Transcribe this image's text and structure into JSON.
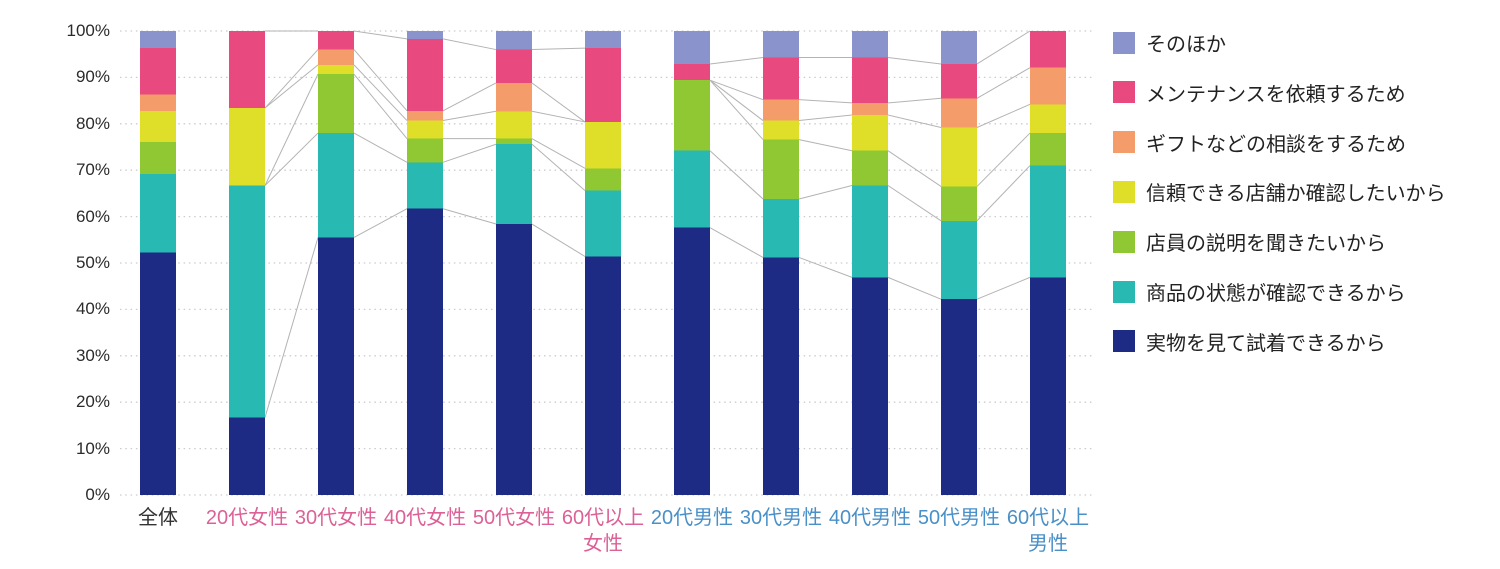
{
  "chart_data": {
    "type": "bar",
    "variant": "100-percent-stacked-columns-with-series-lines",
    "title": "",
    "xlabel": "",
    "ylabel": "",
    "ylim": [
      0,
      100
    ],
    "grid": "dotted-horizontal",
    "legend_position": "right",
    "y_ticks": [
      "0%",
      "10%",
      "20%",
      "30%",
      "40%",
      "50%",
      "60%",
      "70%",
      "80%",
      "90%",
      "100%"
    ],
    "categories": [
      {
        "label": "全体",
        "color": "#333333"
      },
      {
        "label": "20代女性",
        "color": "#dc6196"
      },
      {
        "label": "30代女性",
        "color": "#dc6196"
      },
      {
        "label": "40代女性",
        "color": "#dc6196"
      },
      {
        "label": "50代女性",
        "color": "#dc6196"
      },
      {
        "label": "60代以上\n女性",
        "color": "#dc6196"
      },
      {
        "label": "20代男性",
        "color": "#4a90c8"
      },
      {
        "label": "30代男性",
        "color": "#4a90c8"
      },
      {
        "label": "40代男性",
        "color": "#4a90c8"
      },
      {
        "label": "50代男性",
        "color": "#4a90c8"
      },
      {
        "label": "60代以上\n男性",
        "color": "#4a90c8"
      }
    ],
    "series_bottom_to_top": [
      {
        "name": "実物を見て試着できるから",
        "color": "#1e2b85",
        "values": [
          52.3,
          16.7,
          55.5,
          61.7,
          58.4,
          51.4,
          57.6,
          51.2,
          46.9,
          42.2,
          46.9
        ]
      },
      {
        "name": "商品の状態が確認できるから",
        "color": "#29b9b3",
        "values": [
          16.9,
          50.0,
          22.5,
          10.0,
          17.2,
          14.2,
          16.6,
          12.6,
          19.8,
          16.9,
          24.1
        ]
      },
      {
        "name": "店員の説明を聞きたいから",
        "color": "#8fc832",
        "values": [
          6.9,
          0,
          12.7,
          5.1,
          1.2,
          4.8,
          15.2,
          12.8,
          7.5,
          7.4,
          7.0
        ]
      },
      {
        "name": "信頼できる店舗か確認したいから",
        "color": "#dfdf2a",
        "values": [
          6.7,
          16.7,
          2.0,
          3.9,
          5.9,
          10.0,
          0,
          4.1,
          7.7,
          12.7,
          6.2
        ]
      },
      {
        "name": "ギフトなどの相談をするため",
        "color": "#f59d6a",
        "values": [
          3.5,
          0,
          3.3,
          2.1,
          6.1,
          0,
          0,
          4.5,
          2.6,
          6.3,
          7.9
        ]
      },
      {
        "name": "メンテナンスを依頼するため",
        "color": "#e8497e",
        "values": [
          10.0,
          16.6,
          4.0,
          15.5,
          7.2,
          15.9,
          3.5,
          9.1,
          9.8,
          7.4,
          7.9
        ]
      },
      {
        "name": "そのほか",
        "color": "#8b93cc",
        "values": [
          3.7,
          0,
          0,
          1.7,
          4.0,
          3.7,
          7.1,
          5.7,
          5.7,
          7.1,
          0
        ]
      }
    ],
    "legend_top_to_bottom": [
      "そのほか",
      "メンテナンスを依頼するため",
      "ギフトなどの相談をするため",
      "信頼できる店舗か確認したいから",
      "店員の説明を聞きたいから",
      "商品の状態が確認できるから",
      "実物を見て試着できるから"
    ],
    "series_line_groups": [
      [
        1,
        5
      ],
      [
        6,
        10
      ]
    ],
    "series_line_color": "#b3b3b3",
    "gridline_color": "#cccccc"
  }
}
